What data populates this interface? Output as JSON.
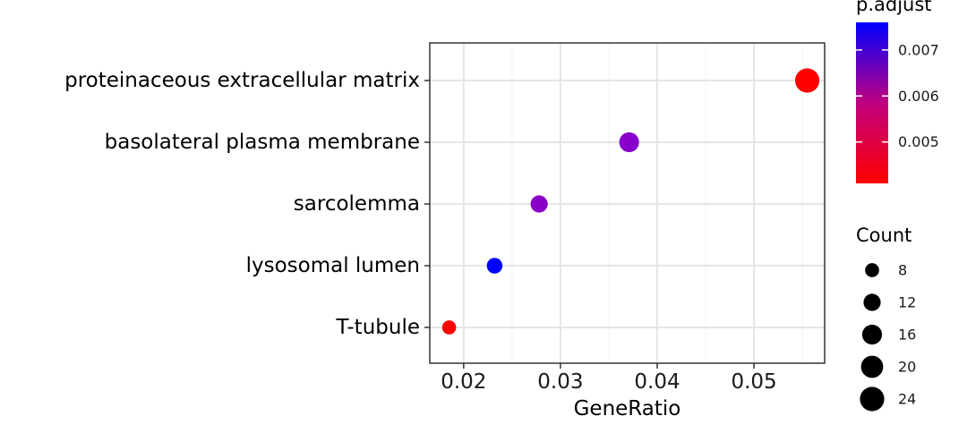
{
  "chart_data": {
    "type": "scatter",
    "title": "",
    "xlabel": "GeneRatio",
    "ylabel": "",
    "xlim": [
      0.0165,
      0.0573
    ],
    "x_ticks": [
      0.02,
      0.03,
      0.04,
      0.05
    ],
    "x_tick_labels": [
      "0.02",
      "0.03",
      "0.04",
      "0.05"
    ],
    "grid": true,
    "categories": [
      "proteinaceous extracellular matrix",
      "basolateral plasma membrane",
      "sarcolemma",
      "lysosomal lumen",
      "T-tubule"
    ],
    "points": [
      {
        "term": "proteinaceous extracellular matrix",
        "gene_ratio": 0.0555,
        "count": 24,
        "p_adjust": 0.0042,
        "color": "#ff0000"
      },
      {
        "term": "basolateral plasma membrane",
        "gene_ratio": 0.0371,
        "count": 16,
        "p_adjust": 0.0066,
        "color": "#8800cc"
      },
      {
        "term": "sarcolemma",
        "gene_ratio": 0.0278,
        "count": 12,
        "p_adjust": 0.0066,
        "color": "#8b00c9"
      },
      {
        "term": "lysosomal lumen",
        "gene_ratio": 0.0232,
        "count": 10,
        "p_adjust": 0.0075,
        "color": "#0000ff"
      },
      {
        "term": "T-tubule",
        "gene_ratio": 0.0185,
        "count": 8,
        "p_adjust": 0.0042,
        "color": "#ff0000"
      }
    ],
    "color_legend": {
      "title": "p.adjust",
      "range": [
        0.0041,
        0.0076
      ],
      "ticks": [
        0.005,
        0.006,
        0.007
      ],
      "tick_labels": [
        "0.005",
        "0.006",
        "0.007"
      ],
      "low_color": "#ff0000",
      "high_color": "#0000ff",
      "placement": "right"
    },
    "size_legend": {
      "title": "Count",
      "values": [
        8,
        12,
        16,
        20,
        24
      ],
      "labels": [
        "8",
        "12",
        "16",
        "20",
        "24"
      ],
      "placement": "right"
    }
  }
}
